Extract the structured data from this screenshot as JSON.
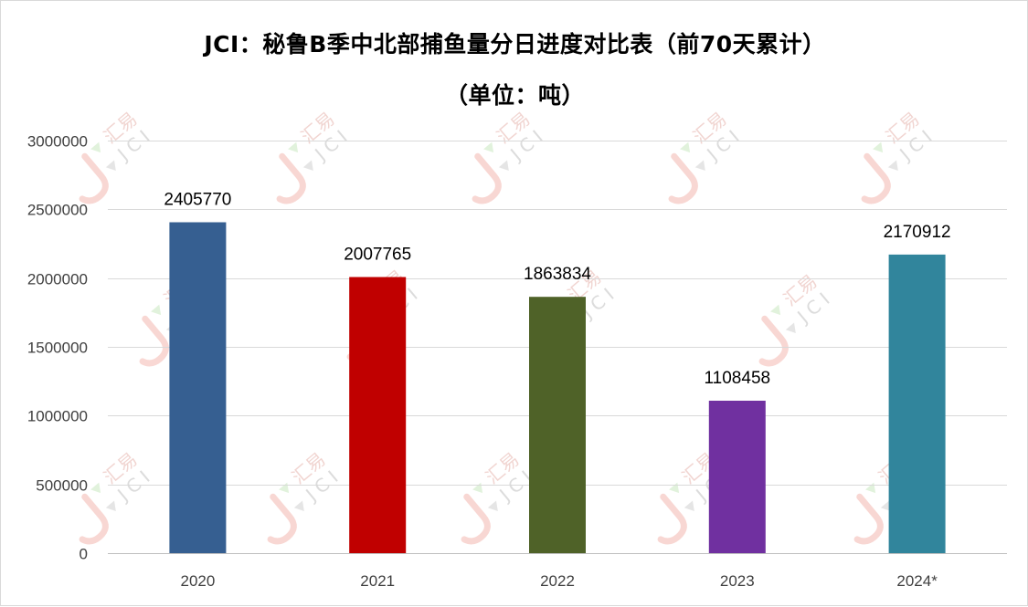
{
  "chart_data": {
    "type": "bar",
    "title": "JCI：秘鲁B季中北部捕鱼量分日进度对比表（前70天累计）",
    "subtitle": "（单位：吨）",
    "categories": [
      "2020",
      "2021",
      "2022",
      "2023",
      "2024*"
    ],
    "values": [
      2405770,
      2007765,
      1863834,
      1108458,
      2170912
    ],
    "data_labels": [
      "2405770",
      "2007765",
      "1863834",
      "1108458",
      "2170912"
    ],
    "colors": [
      "#365f91",
      "#c00000",
      "#4f6228",
      "#7030a0",
      "#31859c"
    ],
    "ylim": [
      0,
      3000000
    ],
    "yticks": [
      "0",
      "500000",
      "1000000",
      "1500000",
      "2000000",
      "2500000",
      "3000000"
    ],
    "xlabel": "",
    "ylabel": "",
    "grid": true,
    "legend": "none"
  },
  "watermark": {
    "text_cn": "汇易",
    "text_en": "JCI"
  }
}
